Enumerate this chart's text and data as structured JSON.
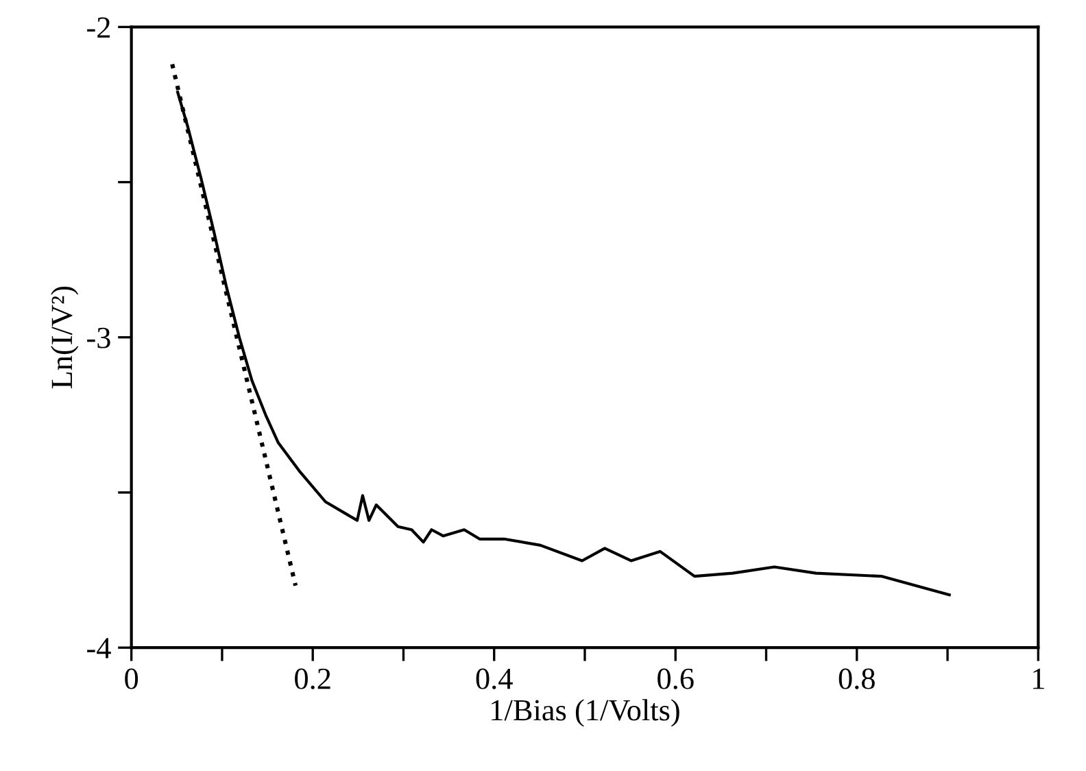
{
  "chart_data": {
    "type": "line",
    "xlabel": "1/Bias (1/Volts)",
    "ylabel": "Ln(I/V²)",
    "xlim": [
      0,
      1
    ],
    "xticks": [
      0,
      {
        "value": 0.1,
        "label": null
      },
      0.2,
      {
        "value": 0.3,
        "label": null
      },
      0.4,
      {
        "value": 0.5,
        "label": null
      },
      0.6,
      {
        "value": 0.7,
        "label": null
      },
      0.8,
      {
        "value": 0.9,
        "label": null
      },
      1
    ],
    "ylim": [
      -4,
      -2
    ],
    "yticks": [
      -4,
      {
        "value": -3.5,
        "label": null
      },
      -3,
      {
        "value": -2.5,
        "label": null
      },
      -2
    ],
    "grid": false,
    "legend": false,
    "marker": "none",
    "series": [
      {
        "color": "#000000",
        "line_style": "solid",
        "x": [
          0.051,
          0.062,
          0.077,
          0.091,
          0.105,
          0.119,
          0.133,
          0.148,
          0.162,
          0.185,
          0.214,
          0.249,
          0.255,
          0.262,
          0.27,
          0.294,
          0.309,
          0.322,
          0.331,
          0.344,
          0.367,
          0.384,
          0.411,
          0.451,
          0.497,
          0.522,
          0.551,
          0.583,
          0.621,
          0.663,
          0.709,
          0.755,
          0.827,
          0.902
        ],
        "values": [
          -2.21,
          -2.32,
          -2.49,
          -2.66,
          -2.84,
          -3.0,
          -3.14,
          -3.25,
          -3.34,
          -3.43,
          -3.53,
          -3.59,
          -3.51,
          -3.59,
          -3.54,
          -3.61,
          -3.62,
          -3.66,
          -3.62,
          -3.64,
          -3.62,
          -3.65,
          -3.65,
          -3.67,
          -3.72,
          -3.68,
          -3.72,
          -3.69,
          -3.77,
          -3.76,
          -3.74,
          -3.76,
          -3.77,
          -3.83
        ]
      },
      {
        "color": "#000000",
        "line_style": "dotted",
        "x": [
          0.045,
          0.181
        ],
        "values": [
          -2.12,
          -3.8
        ]
      }
    ]
  }
}
